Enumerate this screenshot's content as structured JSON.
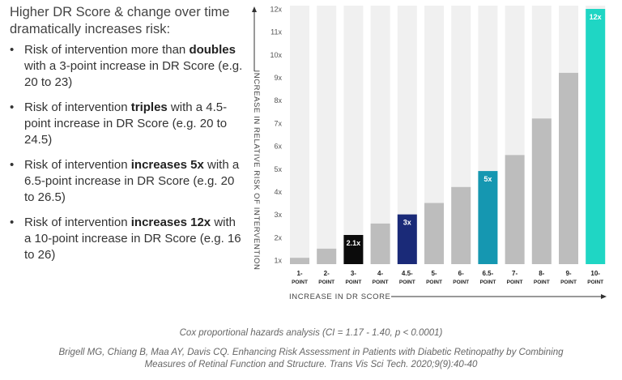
{
  "headline": "Higher DR Score & change over time dramatically increases risk:",
  "bullets": [
    {
      "prefix": "Risk of intervention more than ",
      "bold": "doubles",
      "suffix": " with a 3-point increase in DR Score (e.g. 20 to 23)"
    },
    {
      "prefix": "Risk of intervention ",
      "bold": "triples",
      "suffix": " with a 4.5-point increase in DR Score (e.g. 20 to 24.5)"
    },
    {
      "prefix": "Risk of intervention ",
      "bold": "increases 5x",
      "suffix": " with a 6.5-point increase in DR Score (e.g. 20 to 26.5)"
    },
    {
      "prefix": "Risk of intervention ",
      "bold": "increases 12x",
      "suffix": " with a 10-point increase in DR Score (e.g. 16 to 26)"
    }
  ],
  "footnotes": {
    "stats": "Cox proportional hazards analysis (CI = 1.17 - 1.40, p < 0.0001)",
    "citation_line1": "Brigell MG, Chiang B, Maa AY, Davis CQ. Enhancing Risk Assessment in Patients with Diabetic Retinopathy by Combining",
    "citation_line2": "Measures of Retinal Function and Structure. Trans Vis Sci Tech. 2020;9(9):40-40"
  },
  "chart_data": {
    "type": "bar",
    "categories": [
      [
        "1-",
        "POINT"
      ],
      [
        "2-",
        "POINT"
      ],
      [
        "3-",
        "POINT"
      ],
      [
        "4-",
        "POINT"
      ],
      [
        "4.5-",
        "POINT"
      ],
      [
        "5-",
        "POINT"
      ],
      [
        "6-",
        "POINT"
      ],
      [
        "6.5-",
        "POINT"
      ],
      [
        "7-",
        "POINT"
      ],
      [
        "8-",
        "POINT"
      ],
      [
        "9-",
        "POINT"
      ],
      [
        "10-",
        "POINT"
      ]
    ],
    "values": [
      1.1,
      1.5,
      2.1,
      2.6,
      3.0,
      3.5,
      4.2,
      4.9,
      5.6,
      7.2,
      9.2,
      12.0
    ],
    "bar_labels": [
      "",
      "",
      "2.1x",
      "",
      "3x",
      "",
      "",
      "5x",
      "",
      "",
      "",
      "12x"
    ],
    "colors": [
      "#bdbdbd",
      "#bdbdbd",
      "#0b0b0b",
      "#bdbdbd",
      "#1a2a78",
      "#bdbdbd",
      "#bdbdbd",
      "#1597b1",
      "#bdbdbd",
      "#bdbdbd",
      "#bdbdbd",
      "#1fd6c4"
    ],
    "background_color": "#f0f0f0",
    "ylim": [
      1,
      12
    ],
    "yticks": [
      "1x",
      "2x",
      "3x",
      "4x",
      "5x",
      "6x",
      "7x",
      "8x",
      "9x",
      "10x",
      "11x",
      "12x"
    ],
    "ylabel": "INCREASE IN RELATIVE RISK OF INTERVENTION",
    "xlabel": "INCREASE IN DR SCORE"
  }
}
